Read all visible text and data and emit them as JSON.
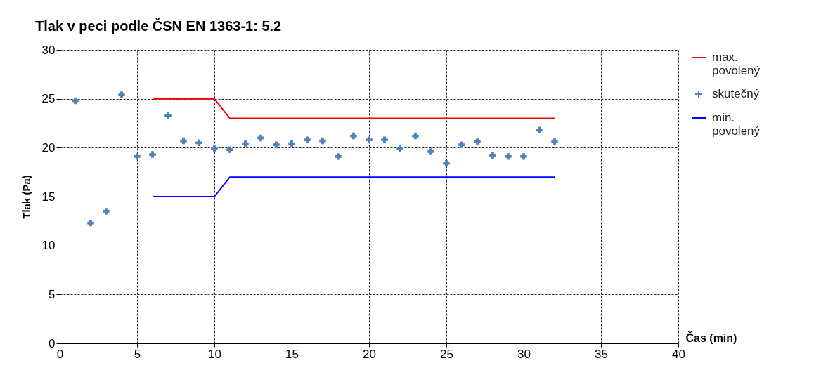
{
  "chart_data": {
    "type": "scatter",
    "title": "Tlak v peci podle ČSN EN 1363-1: 5.2",
    "xlabel": "Čas (min)",
    "ylabel": "Tlak (Pa)",
    "xlim": [
      0,
      40
    ],
    "xticks": [
      0,
      5,
      10,
      15,
      20,
      25,
      30,
      35,
      40
    ],
    "ylim": [
      0,
      30
    ],
    "yticks": [
      0,
      5,
      10,
      15,
      20,
      25,
      30
    ],
    "grid": true,
    "legend": "right",
    "series": [
      {
        "name": "max. povolený",
        "type": "line",
        "color": "#ff0000",
        "marker": "none",
        "line_style": "solid",
        "x": [
          6,
          10,
          11,
          32
        ],
        "values": [
          25,
          25,
          23,
          23
        ]
      },
      {
        "name": "skutečný",
        "color": "#4f81bd",
        "marker": "cross",
        "x": [
          1,
          2,
          3,
          4,
          5,
          6,
          7,
          8,
          9,
          10,
          11,
          12,
          13,
          14,
          15,
          16,
          17,
          18,
          19,
          20,
          21,
          22,
          23,
          24,
          25,
          26,
          27,
          28,
          29,
          30,
          31,
          32
        ],
        "values": [
          24.8,
          12.3,
          13.5,
          25.4,
          19.1,
          19.3,
          23.3,
          20.7,
          20.5,
          19.9,
          19.8,
          20.4,
          21.0,
          20.3,
          20.4,
          20.8,
          20.7,
          19.1,
          21.2,
          20.8,
          20.8,
          19.9,
          21.2,
          19.6,
          18.4,
          20.3,
          20.6,
          19.2,
          19.1,
          19.1,
          21.8,
          20.6
        ]
      },
      {
        "name": "min. povolený",
        "type": "line",
        "color": "#0000ff",
        "marker": "none",
        "line_style": "solid",
        "x": [
          6,
          10,
          11,
          32
        ],
        "values": [
          15,
          15,
          17,
          17
        ]
      }
    ]
  }
}
